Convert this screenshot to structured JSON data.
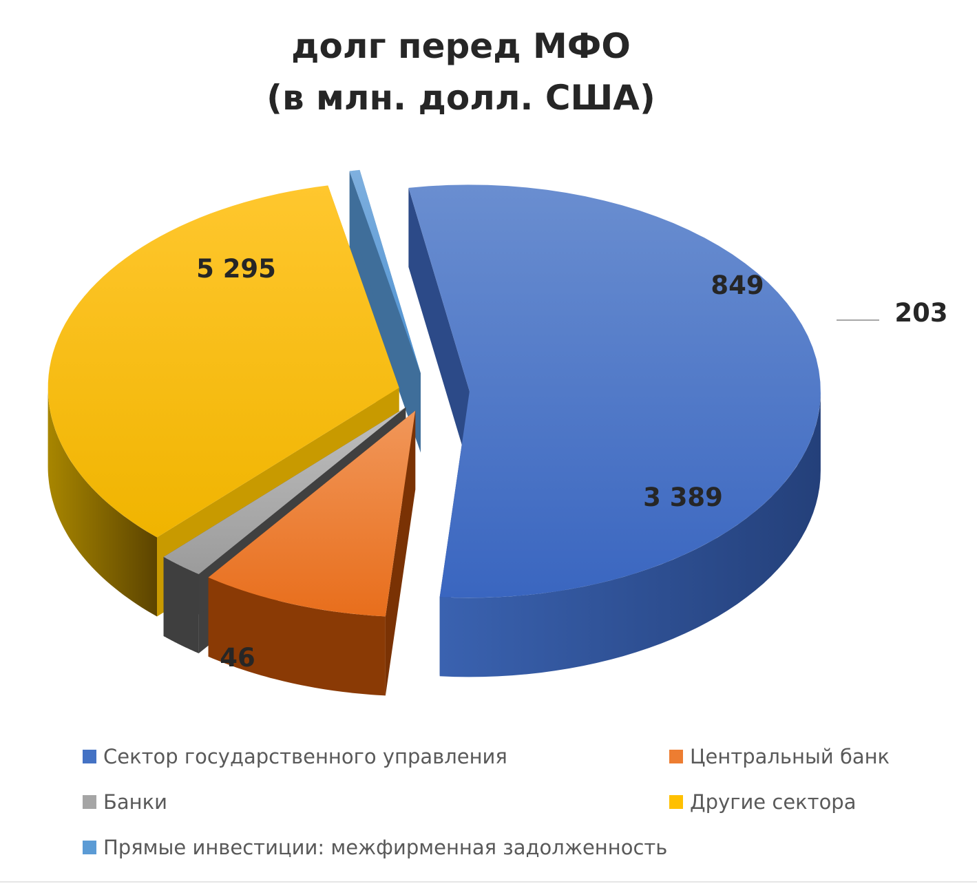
{
  "chart_data": {
    "type": "pie",
    "variant": "3d-exploded",
    "title_lines": [
      "долг перед МФО",
      "(в млн. долл. США)"
    ],
    "categories": [
      "Сектор государственного управления",
      "Центральный банк",
      "Банки",
      "Другие сектора",
      "Прямые инвестиции: межфирменная задолженность"
    ],
    "values": [
      5295,
      849,
      203,
      3389,
      46
    ],
    "data_labels": [
      "5 295",
      "849",
      "203",
      "3 389",
      "46"
    ],
    "colors": [
      "#4472c4",
      "#ed7d31",
      "#a5a5a5",
      "#ffc000",
      "#5b9bd5"
    ],
    "legend_position": "bottom",
    "grid": false
  }
}
